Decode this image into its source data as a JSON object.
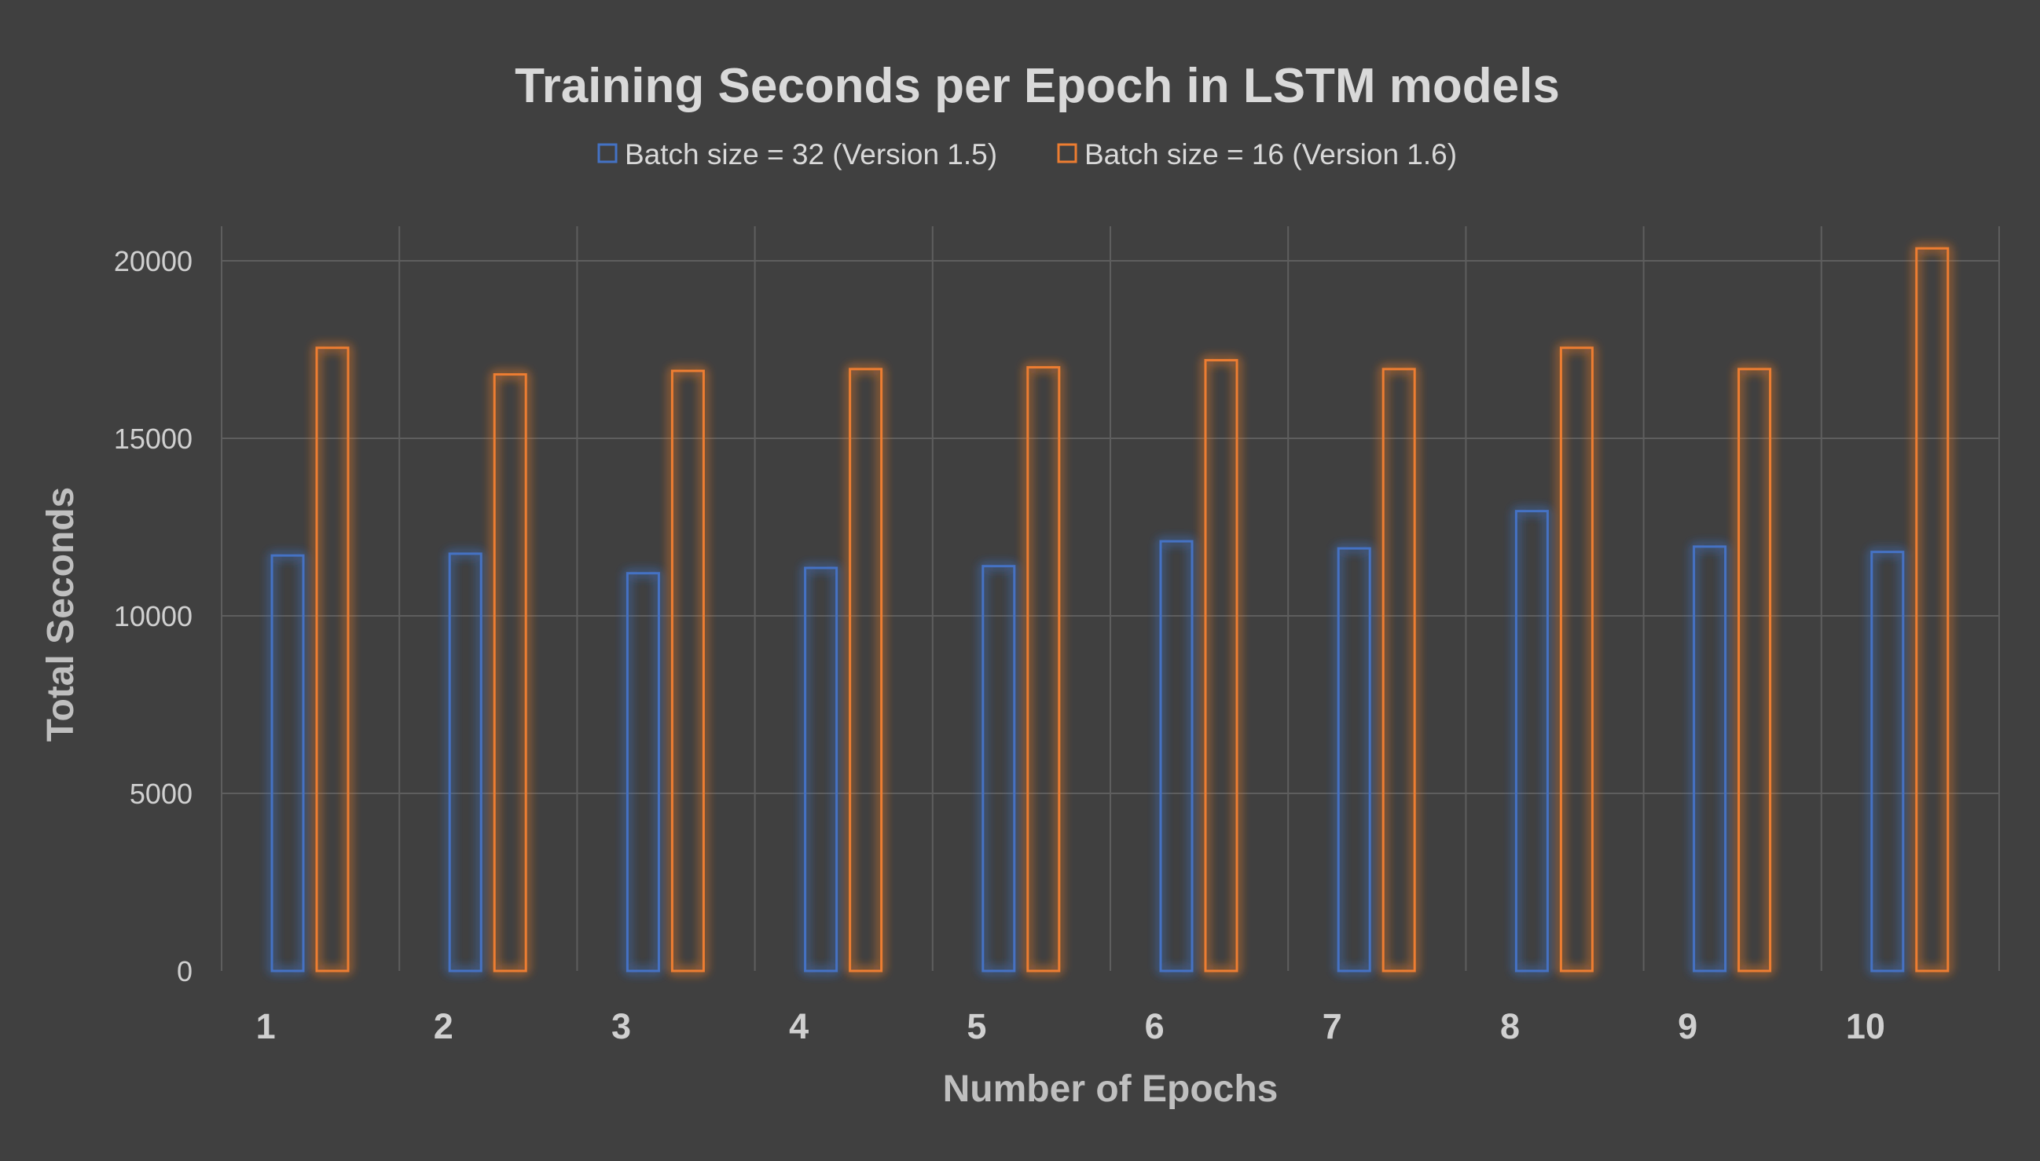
{
  "chart_data": {
    "type": "bar",
    "title": "Training Seconds per Epoch in LSTM models",
    "xlabel": "Number of Epochs",
    "ylabel": "Total Seconds",
    "categories": [
      "1",
      "2",
      "3",
      "4",
      "5",
      "6",
      "7",
      "8",
      "9",
      "10"
    ],
    "series": [
      {
        "name": "Batch size = 32 (Version 1.5)",
        "color": "#4472c4",
        "values": [
          11700,
          11750,
          11200,
          11350,
          11400,
          12100,
          11900,
          12950,
          11950,
          11800
        ]
      },
      {
        "name": "Batch size = 16 (Version 1.6)",
        "color": "#ed7d31",
        "values": [
          17550,
          16800,
          16900,
          16950,
          17000,
          17200,
          16950,
          17550,
          16950,
          20350
        ]
      }
    ],
    "ylim": [
      0,
      20000
    ],
    "yticks": [
      "0",
      "5000",
      "10000",
      "15000",
      "20000"
    ],
    "grid": true,
    "legend_position": "top",
    "bar_style": "outline with glow",
    "background": "#404040"
  }
}
